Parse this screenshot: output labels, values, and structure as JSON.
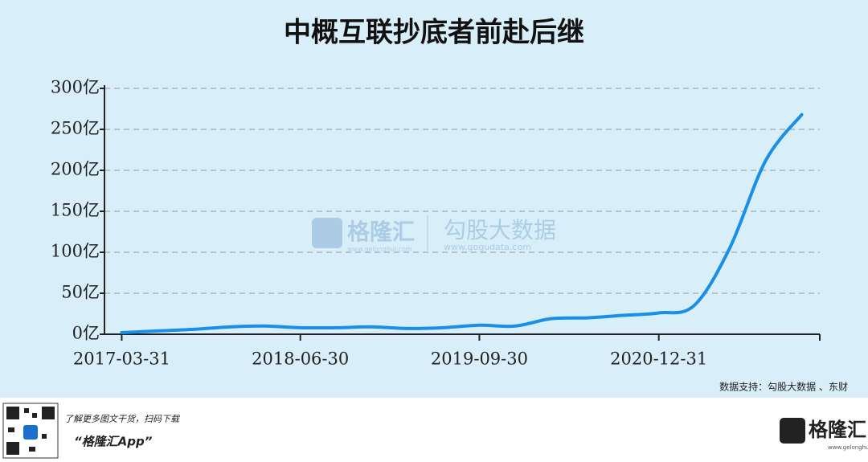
{
  "chart_data": {
    "type": "line",
    "title": "中概互联抄底者前赴后继",
    "x": [
      "2017-03-31",
      "2017-06-30",
      "2017-09-30",
      "2017-12-31",
      "2018-03-31",
      "2018-06-30",
      "2018-09-30",
      "2018-12-31",
      "2019-03-31",
      "2019-06-30",
      "2019-09-30",
      "2019-12-31",
      "2020-03-31",
      "2020-06-30",
      "2020-09-30",
      "2020-12-31",
      "2021-03-31",
      "2021-06-30",
      "2021-09-30",
      "2021-12-31"
    ],
    "series": [
      {
        "color": "#1a8fe8",
        "values": [
          2,
          4,
          6,
          9,
          10,
          8,
          8,
          9,
          7,
          8,
          11,
          10,
          19,
          20,
          23,
          26,
          35,
          105,
          212,
          268
        ]
      }
    ],
    "xlim": [
      "2017-02-15",
      "2022-02-15"
    ],
    "xticks": [
      "2017-03-31",
      "2018-06-30",
      "2019-09-30",
      "2020-12-31"
    ],
    "ylim": [
      0,
      300
    ],
    "yticks": [
      {
        "value": 0,
        "label": "0亿"
      },
      {
        "value": 50,
        "label": "50亿"
      },
      {
        "value": 100,
        "label": "100亿"
      },
      {
        "value": 150,
        "label": "150亿"
      },
      {
        "value": 200,
        "label": "200亿"
      },
      {
        "value": 250,
        "label": "250亿"
      },
      {
        "value": 300,
        "label": "300亿"
      }
    ],
    "grid": true
  },
  "source": "数据支持：勾股大数据 、东财",
  "watermark": {
    "brand": "格隆汇",
    "brand_url": "www.gelonghui.com",
    "data": "勾股大数据",
    "data_url": "www.gogudata.com"
  },
  "footer": {
    "note": "了解更多图文干货，扫码下载",
    "app": "“格隆汇App”",
    "logo": "格隆汇",
    "logo_url": "www.gelonghui.com"
  }
}
